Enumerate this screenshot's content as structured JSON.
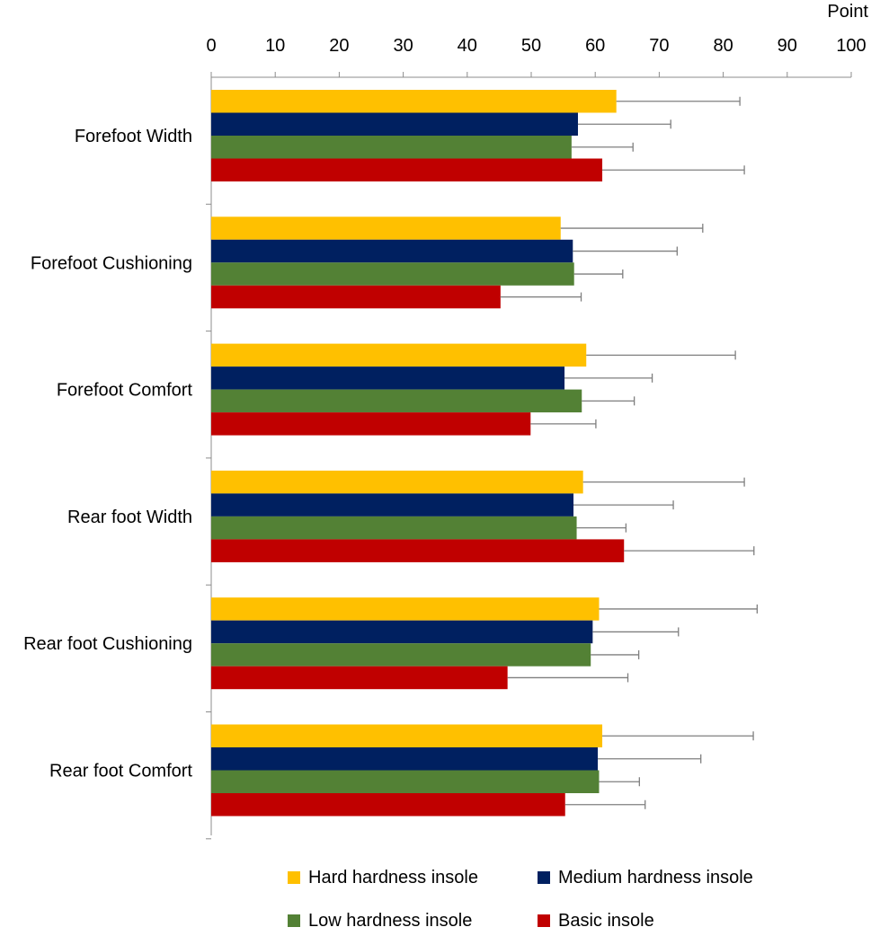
{
  "chart_data": {
    "type": "bar",
    "orientation": "horizontal",
    "unit_label": "Point",
    "xlim": [
      0,
      100
    ],
    "x_ticks": [
      0,
      10,
      20,
      30,
      40,
      50,
      60,
      70,
      80,
      90,
      100
    ],
    "x_axis_position": "top",
    "grid": false,
    "error_bars": true,
    "legend_position": "bottom",
    "categories": [
      "Forefoot Width",
      "Forefoot Cushioning",
      "Forefoot Comfort",
      "Rear foot Width",
      "Rear foot Cushioning",
      "Rear foot Comfort"
    ],
    "series": [
      {
        "name": "Hard hardness insole",
        "color": "#FFC000",
        "values": [
          63.3,
          54.6,
          58.6,
          58.1,
          60.6,
          61.1
        ],
        "errors": [
          19.3,
          22.2,
          23.3,
          25.2,
          24.7,
          23.6
        ]
      },
      {
        "name": "Medium hardness insole",
        "color": "#002060",
        "values": [
          57.3,
          56.5,
          55.2,
          56.6,
          59.6,
          60.4
        ],
        "errors": [
          14.5,
          16.3,
          13.7,
          15.6,
          13.4,
          16.1
        ]
      },
      {
        "name": "Low hardness insole",
        "color": "#538135",
        "values": [
          56.3,
          56.7,
          57.9,
          57.1,
          59.3,
          60.6
        ],
        "errors": [
          9.6,
          7.6,
          8.2,
          7.7,
          7.5,
          6.3
        ]
      },
      {
        "name": "Basic insole",
        "color": "#C00000",
        "values": [
          61.1,
          45.2,
          49.9,
          64.5,
          46.3,
          55.3
        ],
        "errors": [
          22.2,
          12.6,
          10.2,
          20.3,
          18.8,
          12.5
        ]
      }
    ]
  }
}
